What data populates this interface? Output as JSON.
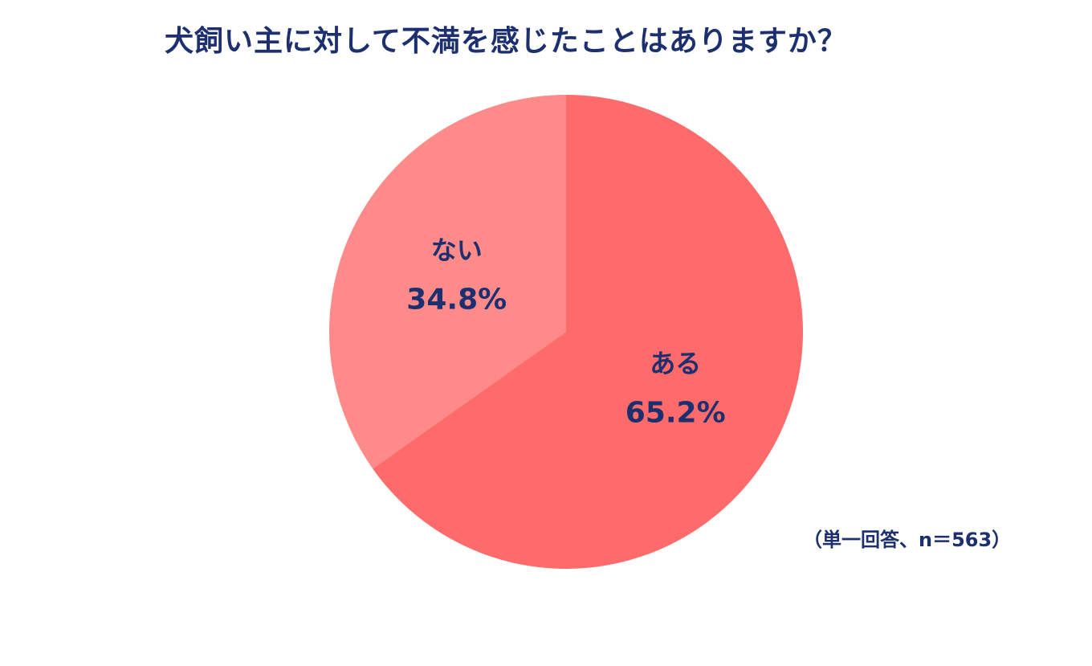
{
  "chart_data": {
    "type": "pie",
    "title": "犬飼い主に対して不満を感じたことはありますか？",
    "slices": [
      {
        "label": "ある",
        "value": 65.2,
        "value_label": "65.2%",
        "color": "#ff6b6b"
      },
      {
        "label": "ない",
        "value": 34.8,
        "value_label": "34.8%",
        "color": "#ff8a8a"
      }
    ],
    "note": "（単一回答、n＝563）",
    "start_angle": "12 o'clock",
    "direction": "clockwise",
    "legend": "none",
    "label_color": "#1c2f6e"
  }
}
